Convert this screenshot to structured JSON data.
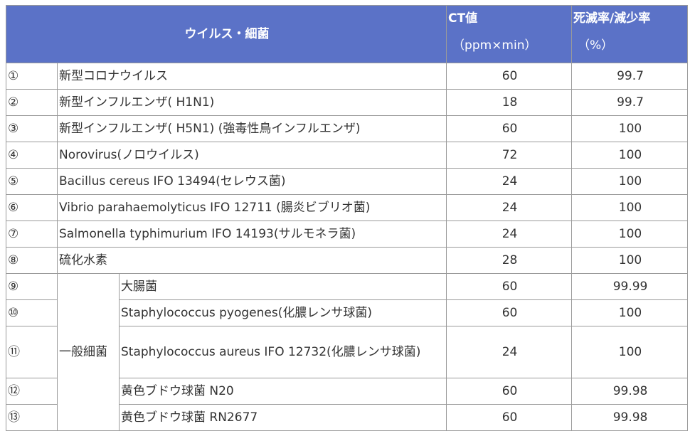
{
  "header": {
    "name": "ウイルス・細菌",
    "ct_title": "CT値",
    "ct_unit": "（ppm×min）",
    "rate_title": "死滅率/減少率",
    "rate_unit": "（%）"
  },
  "rows": [
    {
      "no": "①",
      "name": "新型コロナウイルス",
      "ct": "60",
      "rate": "99.7"
    },
    {
      "no": "②",
      "name": "新型インフルエンザ( H1N1)",
      "ct": "18",
      "rate": "99.7"
    },
    {
      "no": "③",
      "name": "新型インフルエンザ( H5N1) (強毒性鳥インフルエンザ)",
      "ct": "60",
      "rate": "100"
    },
    {
      "no": "④",
      "name": "Norovirus(ノロウイルス)",
      "ct": "72",
      "rate": "100"
    },
    {
      "no": "⑤",
      "name": "Bacillus cereus IFO 13494(セレウス菌)",
      "ct": "24",
      "rate": "100"
    },
    {
      "no": "⑥",
      "name": "Vibrio parahaemolyticus IFO 12711 (腸炎ビブリオ菌)",
      "ct": "24",
      "rate": "100"
    },
    {
      "no": "⑦",
      "name": "Salmonella typhimurium IFO 14193(サルモネラ菌)",
      "ct": "24",
      "rate": "100"
    },
    {
      "no": "⑧",
      "name": "硫化水素",
      "ct": "28",
      "rate": "100"
    }
  ],
  "group_label": "一般細菌",
  "group_rows": [
    {
      "no": "⑨",
      "name": "大腸菌",
      "ct": "60",
      "rate": "99.99"
    },
    {
      "no": "⑩",
      "name": "Staphylococcus pyogenes(化膿レンサ球菌)",
      "ct": "60",
      "rate": "100"
    },
    {
      "no": "⑪",
      "name": "Staphylococcus aureus IFO 12732(化膿レンサ球菌)",
      "ct": "24",
      "rate": "100"
    },
    {
      "no": "⑫",
      "name": "黄色ブドウ球菌 N20",
      "ct": "60",
      "rate": "99.98"
    },
    {
      "no": "⑬",
      "name": "黄色ブドウ球菌 RN2677",
      "ct": "60",
      "rate": "99.98"
    }
  ]
}
